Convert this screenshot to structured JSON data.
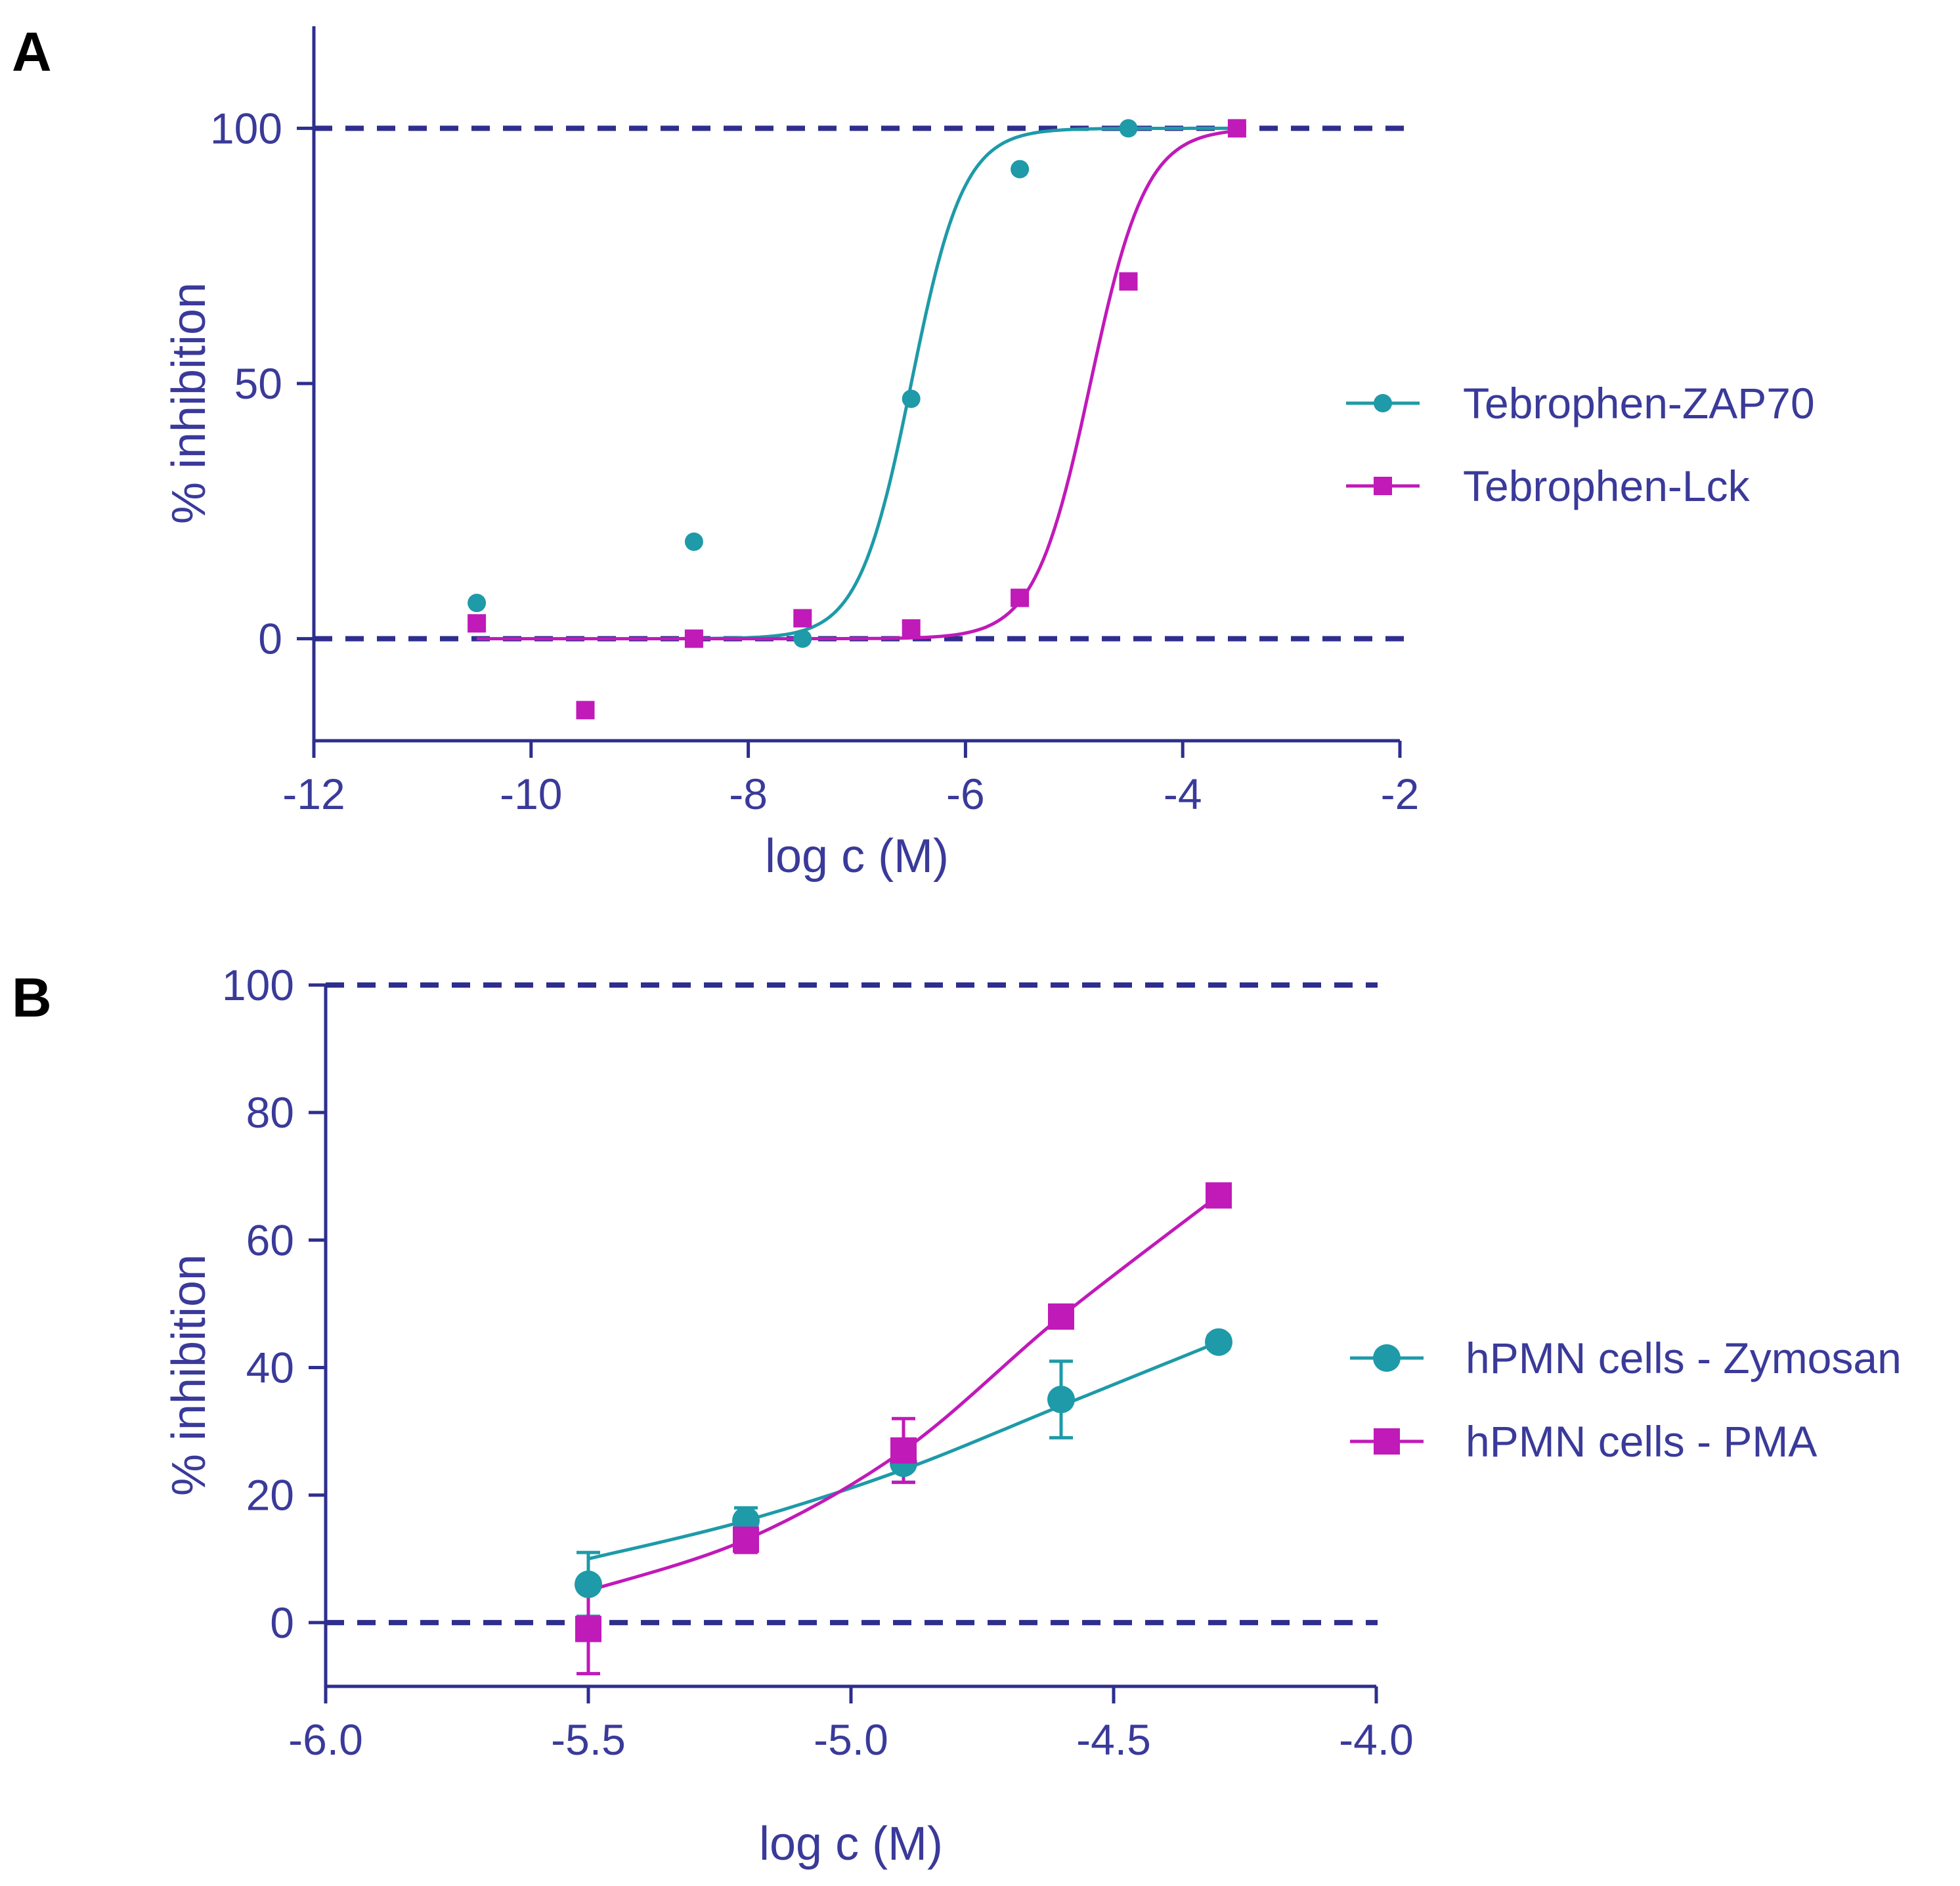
{
  "colors": {
    "axis": "#2e2e8e",
    "text": "#3a3a9a",
    "teal": "#1e9aa8",
    "magenta": "#c01ab8"
  },
  "chart_data": [
    {
      "panel_label": "A",
      "type": "scatter",
      "xlabel": "log c (M)",
      "ylabel": "% inhibition",
      "xlim": [
        -12,
        -2
      ],
      "ylim": [
        -20,
        120
      ],
      "xticks": [
        -12,
        -10,
        -8,
        -6,
        -4,
        -2
      ],
      "yticks": [
        0,
        50,
        100
      ],
      "reference_lines": [
        0,
        100
      ],
      "legend_position": "right",
      "series": [
        {
          "name": "Tebrophen-ZAP70",
          "marker": "circle",
          "color_key": "teal",
          "x": [
            -10.5,
            -8.5,
            -7.5,
            -6.5,
            -5.5,
            -4.5
          ],
          "y": [
            7,
            19,
            0,
            47,
            92,
            100
          ],
          "fit": {
            "model": "sigmoid",
            "bottom": 0,
            "top": 100,
            "logIC50": -6.5,
            "hill": 1.8,
            "x_range": [
              -8.7,
              -3.5
            ]
          }
        },
        {
          "name": "Tebrophen-Lck",
          "marker": "square",
          "color_key": "magenta",
          "x": [
            -10.5,
            -9.5,
            -8.5,
            -7.5,
            -6.5,
            -5.5,
            -4.5,
            -3.5
          ],
          "y": [
            3,
            -14,
            0,
            4,
            2,
            8,
            70,
            100
          ],
          "fit": {
            "model": "sigmoid",
            "bottom": 0,
            "top": 100,
            "logIC50": -4.85,
            "hill": 1.7,
            "x_range": [
              -10.5,
              -3.5
            ]
          }
        }
      ]
    },
    {
      "panel_label": "B",
      "type": "line",
      "xlabel": "log c (M)",
      "ylabel": "% inhibition",
      "xlim": [
        -6.0,
        -4.0
      ],
      "ylim": [
        -10,
        100
      ],
      "xticks": [
        -6.0,
        -5.5,
        -5.0,
        -4.5,
        -4.0
      ],
      "xtick_labels": [
        "-6.0",
        "-5.5",
        "-5.0",
        "-4.5",
        "-4.0"
      ],
      "yticks": [
        0,
        20,
        40,
        60,
        80,
        100
      ],
      "reference_lines": [
        0,
        100
      ],
      "legend_position": "right",
      "series": [
        {
          "name": "hPMN cells - Zymosan",
          "marker": "circle",
          "color_key": "teal",
          "x": [
            -5.5,
            -5.2,
            -4.9,
            -4.6,
            -4.3
          ],
          "y": [
            6,
            16,
            25,
            35,
            44
          ],
          "err": [
            5,
            2,
            3,
            6,
            1
          ],
          "fit_y": [
            10,
            16,
            24,
            34,
            44
          ]
        },
        {
          "name": "hPMN cells - PMA",
          "marker": "square",
          "color_key": "magenta",
          "x": [
            -5.5,
            -5.2,
            -4.9,
            -4.6,
            -4.3
          ],
          "y": [
            -1,
            13,
            27,
            48,
            67
          ],
          "err": [
            7,
            2,
            5,
            1,
            1
          ],
          "fit_y": [
            5,
            13,
            27,
            48,
            67
          ]
        }
      ]
    }
  ]
}
